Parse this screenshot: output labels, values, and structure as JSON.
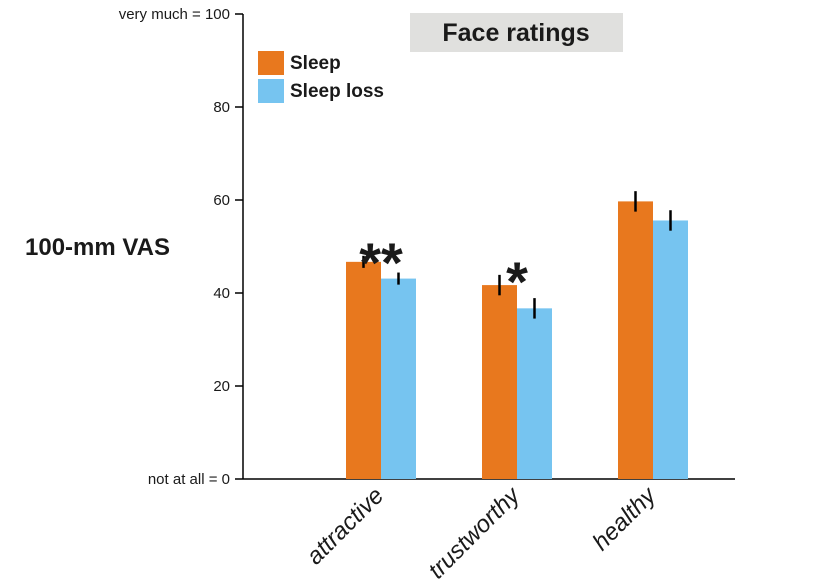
{
  "chart_data": {
    "type": "bar",
    "title": "Face ratings",
    "ylabel": "100-mm VAS",
    "ylim": [
      0,
      100
    ],
    "yticks": [
      {
        "value": 0,
        "label": "not at all = 0"
      },
      {
        "value": 20,
        "label": "20"
      },
      {
        "value": 40,
        "label": "40"
      },
      {
        "value": 60,
        "label": "60"
      },
      {
        "value": 80,
        "label": "80"
      },
      {
        "value": 100,
        "label": "very much = 100"
      }
    ],
    "categories": [
      "attractive",
      "trustworthy",
      "healthy"
    ],
    "series": [
      {
        "name": "Sleep",
        "color": "#E8781E",
        "values": [
          46.7,
          41.7,
          59.7
        ],
        "errors": [
          1.3,
          2.2,
          2.2
        ]
      },
      {
        "name": "Sleep loss",
        "color": "#76C4F0",
        "values": [
          43.1,
          36.7,
          55.6
        ],
        "errors": [
          1.3,
          2.2,
          2.2
        ]
      }
    ],
    "significance": [
      "**",
      "*",
      ""
    ],
    "legend_position": "top-left",
    "grid": false
  }
}
